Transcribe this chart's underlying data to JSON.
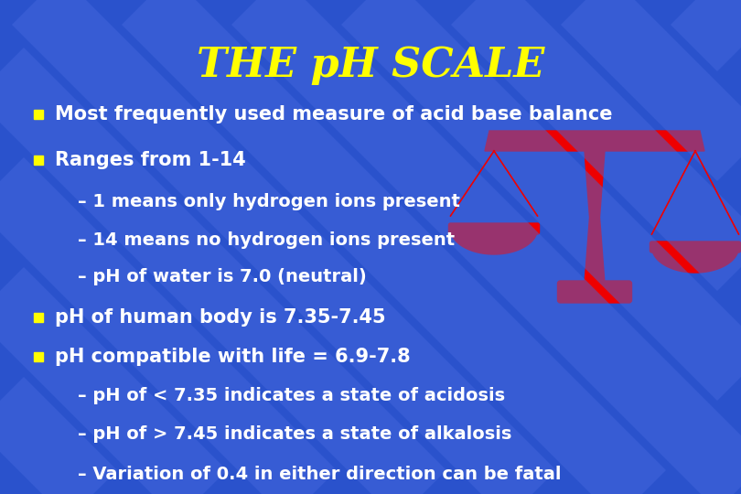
{
  "title": "THE pH SCALE",
  "title_color": "#FFFF00",
  "title_fontsize": 32,
  "bg_color": "#2A52CC",
  "text_color_white": "#FFFFFF",
  "bullet_color": "#FFFF00",
  "scale_color": "#EE0000",
  "stripe_color": "#4466DD",
  "bullet1": "Most frequently used measure of acid base balance",
  "bullet2": "Ranges from 1-14",
  "sub1": "– 1 means only hydrogen ions present",
  "sub2": "– 14 means no hydrogen ions present",
  "sub3": "– pH of water is 7.0 (neutral)",
  "bullet3": "pH of human body is 7.35-7.45",
  "bullet4": "pH compatible with life = 6.9-7.8",
  "subsub1": "– pH of < 7.35 indicates a state of acidosis",
  "subsub2": "– pH of > 7.45 indicates a state of alkalosis",
  "subsub3": "– Variation of 0.4 in either direction can be fatal",
  "main_fontsize": 15,
  "sub_fontsize": 14
}
